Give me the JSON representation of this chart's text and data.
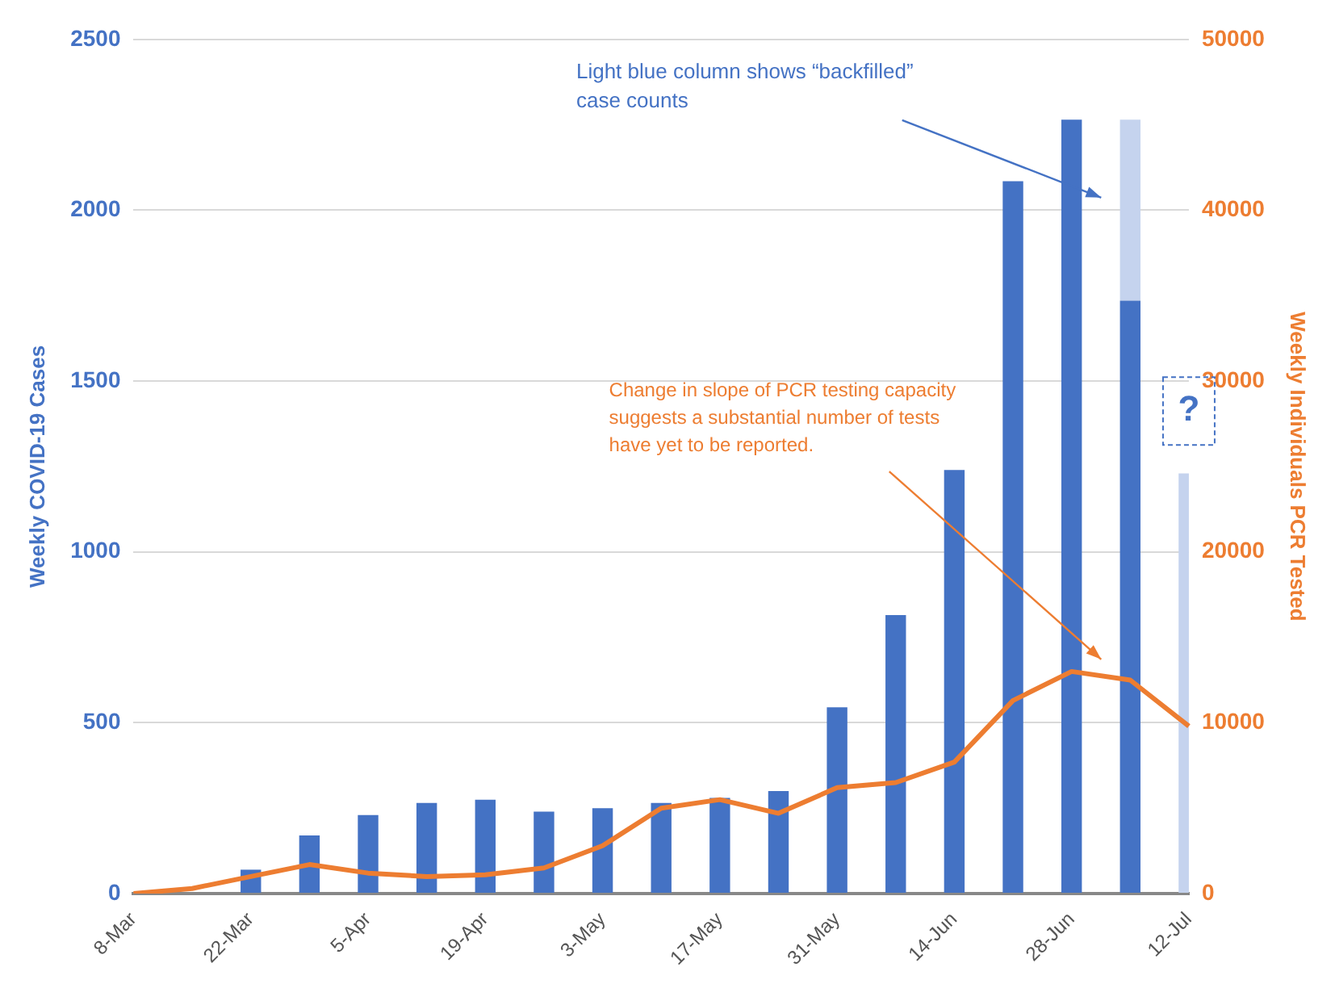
{
  "chart_data": {
    "type": "bar",
    "stacked": true,
    "categories": [
      "8-Mar",
      null,
      "22-Mar",
      null,
      "5-Apr",
      null,
      "19-Apr",
      null,
      "3-May",
      null,
      "17-May",
      null,
      "31-May",
      null,
      "14-Jun",
      null,
      "28-Jun",
      null,
      "12-Jul"
    ],
    "series": [
      {
        "color": "#4472c4",
        "values": [
          null,
          0,
          70,
          170,
          230,
          265,
          275,
          240,
          250,
          265,
          280,
          300,
          545,
          815,
          1240,
          2085,
          2265,
          1735,
          null
        ]
      },
      {
        "color": "#c5d3ee",
        "values": [
          null,
          null,
          null,
          null,
          null,
          null,
          null,
          null,
          null,
          null,
          null,
          null,
          null,
          null,
          null,
          null,
          null,
          530,
          1230
        ]
      },
      {
        "type": "line",
        "axis": "y2",
        "color": "#ed7d31",
        "values": [
          0,
          300,
          1000,
          1700,
          1200,
          1000,
          1100,
          1500,
          2800,
          5000,
          5500,
          4700,
          6200,
          6500,
          7700,
          11300,
          13000,
          12500,
          9800
        ]
      }
    ],
    "ylabel": "Weekly COVID-19 Cases",
    "y2label": "Weekly Individuals PCR Tested",
    "ylim": [
      0,
      2500
    ],
    "yticks": [
      0,
      500,
      1000,
      1500,
      2000,
      2500
    ],
    "y2lim": [
      0,
      50000
    ],
    "y2ticks": [
      0,
      10000,
      20000,
      30000,
      40000,
      50000
    ],
    "grid": "y",
    "legend": false,
    "marker": "none",
    "line_style": "solid",
    "annotations": [
      "Light blue column shows “backfilled”\ncase counts",
      "Change in slope of PCR testing capacity\nsuggests a substantial number of tests\nhave yet to be reported.",
      "?"
    ]
  }
}
